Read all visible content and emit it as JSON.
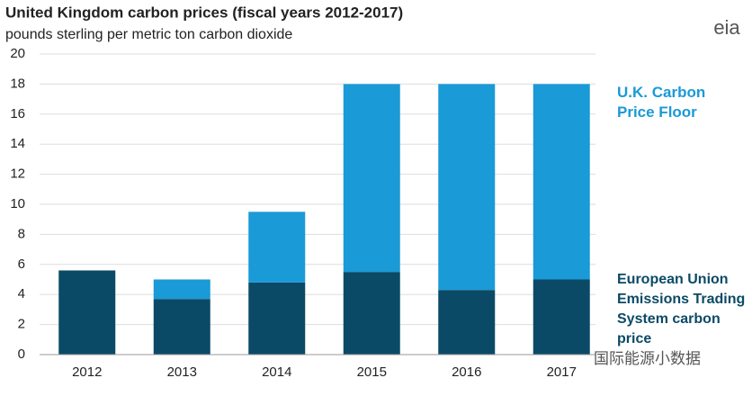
{
  "chart_data": {
    "type": "stacked-bar",
    "title": "United Kingdom carbon prices (fiscal years 2012-2017)",
    "subtitle": "pounds sterling per metric ton carbon dioxide",
    "logo": "eia",
    "watermark": "国际能源小数据",
    "categories": [
      "2012",
      "2013",
      "2014",
      "2015",
      "2016",
      "2017"
    ],
    "series": [
      {
        "name": "European Union Emissions Trading System carbon price",
        "color": "#0b4a66",
        "values": [
          5.6,
          3.7,
          4.8,
          5.5,
          4.3,
          5.0
        ]
      },
      {
        "name": "U.K. Carbon Price Floor",
        "color": "#1a9ad6",
        "values": [
          0,
          1.3,
          4.7,
          12.5,
          13.7,
          13.0
        ]
      }
    ],
    "ylim": [
      0,
      20
    ],
    "yticks": [
      0,
      2,
      4,
      6,
      8,
      10,
      12,
      14,
      16,
      18,
      20
    ],
    "grid": true
  }
}
